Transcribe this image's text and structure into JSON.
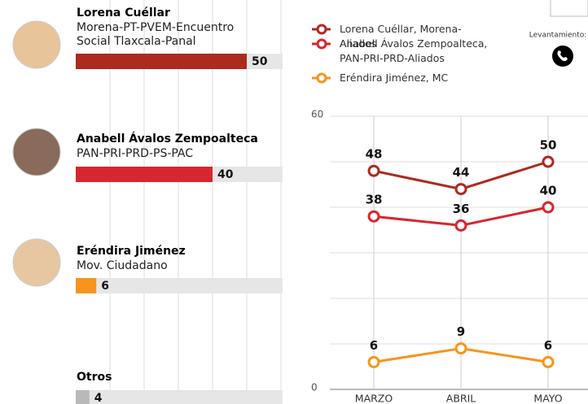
{
  "chart_data": [
    {
      "type": "hbar",
      "categories": [
        "Lorena Cuéllar",
        "Anabell Ávalos Zempoalteca",
        "Eréndira Jiménez",
        "Otros"
      ],
      "parties": [
        "Morena-PT-PVEM-Encuentro Social Tlaxcala-Panal",
        "PAN-PRI-PRD-PS-PAC",
        "Mov. Ciudadano",
        null
      ],
      "values": [
        50,
        40,
        6,
        4
      ],
      "colors": [
        "#ad2a1f",
        "#d7262e",
        "#f7941d",
        "#b9b9b9"
      ],
      "xlim": [
        0,
        60
      ]
    },
    {
      "type": "line",
      "categories": [
        "MARZO",
        "ABRIL",
        "MAYO"
      ],
      "series": [
        {
          "name": "Lorena Cuéllar, Morena-Aliados",
          "color": "#ad2a1f",
          "values": [
            48,
            44,
            50
          ]
        },
        {
          "name": "Anabell Ávalos Zempoalteca, PAN-PRI-PRD-Aliados",
          "color": "#d7262e",
          "values": [
            38,
            36,
            40
          ]
        },
        {
          "name": "Eréndira Jiménez, MC",
          "color": "#f7941d",
          "values": [
            6,
            9,
            6
          ]
        }
      ],
      "ylim": [
        0,
        60
      ],
      "yticks": [
        0,
        60
      ],
      "note": "Levantamiento:"
    }
  ]
}
